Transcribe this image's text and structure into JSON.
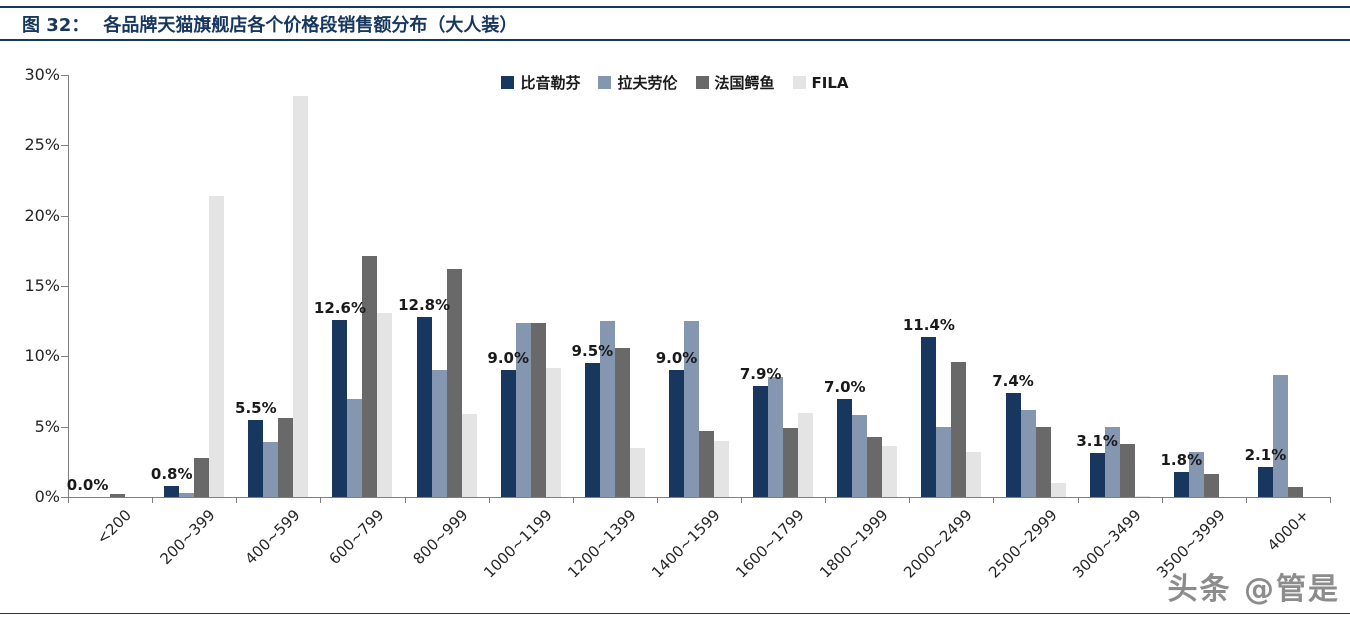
{
  "header": {
    "figure_label": "图 32：",
    "title": "各品牌天猫旗舰店各个价格段销售额分布（大人装）"
  },
  "watermark": "头条 @管是",
  "chart_data": {
    "type": "bar",
    "title": "各品牌天猫旗舰店各个价格段销售额分布（大人装）",
    "categories": [
      "<200",
      "200~399",
      "400~599",
      "600~799",
      "800~999",
      "1000~1199",
      "1200~1399",
      "1400~1599",
      "1600~1799",
      "1800~1999",
      "2000~2499",
      "2500~2999",
      "3000~3499",
      "3500~3999",
      "4000+"
    ],
    "series": [
      {
        "name": "比音勒芬",
        "color": "#17375E",
        "values": [
          0.0,
          0.8,
          5.5,
          12.6,
          12.8,
          9.0,
          9.5,
          9.0,
          7.9,
          7.0,
          11.4,
          7.4,
          3.1,
          1.8,
          2.1
        ],
        "labels": [
          "0.0%",
          "0.8%",
          "5.5%",
          "12.6%",
          "12.8%",
          "9.0%",
          "9.5%",
          "9.0%",
          "7.9%",
          "7.0%",
          "11.4%",
          "7.4%",
          "3.1%",
          "1.8%",
          "2.1%"
        ]
      },
      {
        "name": "拉夫劳伦",
        "color": "#8496B0",
        "values": [
          0.0,
          0.3,
          3.9,
          7.0,
          9.0,
          12.4,
          12.5,
          12.5,
          8.5,
          5.8,
          5.0,
          6.2,
          5.0,
          3.2,
          8.7
        ]
      },
      {
        "name": "法国鳄鱼",
        "color": "#696969",
        "values": [
          0.2,
          2.8,
          5.6,
          17.1,
          16.2,
          12.4,
          10.6,
          4.7,
          4.9,
          4.3,
          9.6,
          5.0,
          3.8,
          1.6,
          0.7
        ]
      },
      {
        "name": "FILA",
        "color": "#E5E4E4",
        "values": [
          0.0,
          21.4,
          28.5,
          13.1,
          5.9,
          9.2,
          3.5,
          4.0,
          6.0,
          3.6,
          3.2,
          1.0,
          0.1,
          0.0,
          0.0
        ]
      }
    ],
    "y_ticks": [
      {
        "value": 0,
        "label": "0%"
      },
      {
        "value": 5,
        "label": "5%"
      },
      {
        "value": 10,
        "label": "10%"
      },
      {
        "value": 15,
        "label": "15%"
      },
      {
        "value": 20,
        "label": "20%"
      },
      {
        "value": 25,
        "label": "25%"
      },
      {
        "value": 30,
        "label": "30%"
      }
    ],
    "ylim": [
      0,
      30
    ],
    "grid": false,
    "legend_position": "top-center",
    "data_labels_on_series": "比音勒芬"
  }
}
